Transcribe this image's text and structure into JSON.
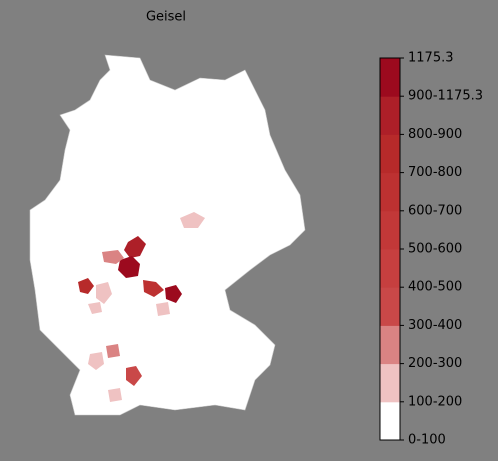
{
  "title": "Geisel",
  "colorbar": {
    "labels": [
      "0-100",
      "100-200",
      "200-300",
      "300-400",
      "400-500",
      "500-600",
      "600-700",
      "700-800",
      "800-900",
      "900-1175.3",
      "1175.3"
    ],
    "colors": [
      "#ffffff",
      "#efc2c2",
      "#da8383",
      "#c94848",
      "#c63f3f",
      "#c23838",
      "#bd3131",
      "#b72a2a",
      "#ad1f28",
      "#9c0a1e"
    ]
  }
}
